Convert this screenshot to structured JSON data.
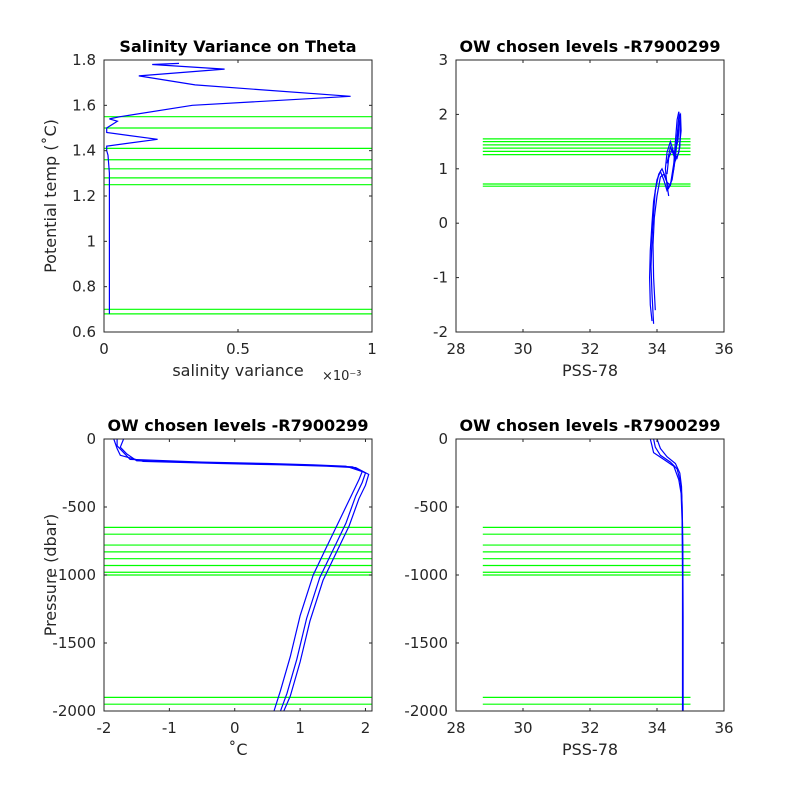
{
  "colors": {
    "profile": "#0000ff",
    "level": "#00ff00",
    "axis": "#262626",
    "background": "#ffffff"
  },
  "chart_data": [
    {
      "type": "line",
      "title": "Salinity Variance on Theta",
      "xlabel": "salinity variance",
      "xlabel_exponent": "×10⁻³",
      "ylabel": "Potential temp (˚C)",
      "xlim": [
        0,
        0.001
      ],
      "ylim": [
        0.6,
        1.8
      ],
      "xtick_values": [
        0,
        0.0005,
        0.001
      ],
      "xtick_labels": [
        "0",
        "0.5",
        "1"
      ],
      "ytick_values": [
        0.6,
        0.8,
        1,
        1.2,
        1.4,
        1.6,
        1.8
      ],
      "ytick_labels": [
        "0.6",
        "0.8",
        "1",
        "1.2",
        "1.4",
        "1.6",
        "1.8"
      ],
      "series": [
        {
          "color": "#0000ff",
          "x": [
            2e-05,
            2e-05,
            2e-05,
            2e-05,
            2e-05,
            1.5e-05,
            1e-05,
            1e-05,
            0.0002,
            1e-05,
            1e-05,
            5e-05,
            2e-05,
            6e-05,
            0.00033,
            0.00092,
            0.00034,
            0.00013,
            0.00045,
            0.00018,
            0.00028
          ],
          "y": [
            0.68,
            0.8,
            1.0,
            1.2,
            1.3,
            1.38,
            1.4,
            1.42,
            1.45,
            1.48,
            1.5,
            1.53,
            1.54,
            1.55,
            1.6,
            1.64,
            1.69,
            1.73,
            1.76,
            1.78,
            1.785
          ]
        }
      ],
      "level_lines": {
        "color": "#00ff00",
        "x_range": [
          0,
          0.001
        ],
        "y_values": [
          0.68,
          0.7,
          1.25,
          1.28,
          1.32,
          1.36,
          1.41,
          1.5,
          1.55
        ]
      }
    },
    {
      "type": "line",
      "title": "OW chosen levels -R7900299",
      "xlabel": "PSS-78",
      "ylabel": "",
      "xlim": [
        28,
        36
      ],
      "ylim": [
        -2,
        3
      ],
      "xtick_values": [
        28,
        30,
        32,
        34,
        36
      ],
      "xtick_labels": [
        "28",
        "30",
        "32",
        "34",
        "36"
      ],
      "ytick_values": [
        -2,
        -1,
        0,
        1,
        2,
        3
      ],
      "ytick_labels": [
        "-2",
        "-1",
        "0",
        "1",
        "2",
        "3"
      ],
      "series": [
        {
          "color": "#0000ff",
          "x": [
            33.85,
            33.8,
            33.78,
            33.8,
            33.85,
            33.9,
            34.0,
            34.1,
            34.2,
            34.3,
            34.4,
            34.5,
            34.55,
            34.6,
            34.65,
            34.7,
            34.68,
            34.6,
            34.5,
            34.4,
            34.3,
            34.25,
            34.3,
            34.35
          ],
          "y": [
            -1.8,
            -1.5,
            -1.0,
            -0.5,
            0,
            0.4,
            0.8,
            0.95,
            0.8,
            0.6,
            0.7,
            1.1,
            1.5,
            1.9,
            2.05,
            1.8,
            1.4,
            1.2,
            1.3,
            1.5,
            1.3,
            1.0,
            0.7,
            0.5
          ]
        },
        {
          "color": "#0000ff",
          "x": [
            33.9,
            33.85,
            33.82,
            33.85,
            33.9,
            33.95,
            34.05,
            34.15,
            34.25,
            34.35,
            34.45,
            34.55,
            34.6,
            34.65,
            34.7,
            34.72,
            34.65,
            34.55,
            34.45,
            34.35,
            34.3
          ],
          "y": [
            -1.85,
            -1.3,
            -0.8,
            -0.3,
            0.2,
            0.6,
            0.9,
            1.0,
            0.85,
            0.65,
            0.8,
            1.2,
            1.6,
            1.95,
            2.0,
            1.7,
            1.3,
            1.15,
            1.35,
            1.2,
            0.9
          ]
        },
        {
          "color": "#0000ff",
          "x": [
            33.95,
            33.9,
            33.88,
            33.92,
            34.0,
            34.1,
            34.2,
            34.3,
            34.4,
            34.5,
            34.6,
            34.68,
            34.62,
            34.5,
            34.4,
            34.3
          ],
          "y": [
            -1.6,
            -1.0,
            -0.4,
            0.1,
            0.5,
            0.85,
            0.9,
            0.75,
            0.7,
            1.0,
            1.5,
            1.9,
            1.5,
            1.25,
            1.4,
            1.1
          ]
        }
      ],
      "level_lines": {
        "color": "#00ff00",
        "x_range": [
          28.8,
          35.0
        ],
        "y_values": [
          0.68,
          0.72,
          1.26,
          1.32,
          1.38,
          1.44,
          1.5,
          1.55
        ]
      }
    },
    {
      "type": "line",
      "title": "OW chosen levels -R7900299",
      "xlabel": "˚C",
      "ylabel": "Pressure (dbar)",
      "xlim": [
        -2,
        2.1
      ],
      "ylim": [
        -2000,
        0
      ],
      "xtick_values": [
        -2,
        -1,
        0,
        1,
        2
      ],
      "xtick_labels": [
        "-2",
        "-1",
        "0",
        "1",
        "2"
      ],
      "ytick_values": [
        -2000,
        -1500,
        -1000,
        -500,
        0
      ],
      "ytick_labels": [
        "-2000",
        "-1500",
        "-1000",
        "-500",
        "0"
      ],
      "series": [
        {
          "color": "#0000ff",
          "x": [
            -1.8,
            -1.8,
            -1.7,
            -1.6,
            -0.5,
            0.5,
            1.2,
            1.7,
            1.95,
            1.9,
            1.8,
            1.6,
            1.4,
            1.2,
            1.0,
            0.85,
            0.7,
            0.6
          ],
          "y": [
            0,
            -50,
            -100,
            -150,
            -170,
            -180,
            -190,
            -200,
            -240,
            -300,
            -400,
            -600,
            -800,
            -1000,
            -1300,
            -1600,
            -1850,
            -2000
          ]
        },
        {
          "color": "#0000ff",
          "x": [
            -1.7,
            -1.75,
            -1.65,
            -1.5,
            -0.3,
            0.6,
            1.3,
            1.8,
            2.0,
            1.95,
            1.85,
            1.7,
            1.5,
            1.3,
            1.1,
            0.95,
            0.8,
            0.7
          ],
          "y": [
            0,
            -60,
            -110,
            -160,
            -175,
            -185,
            -195,
            -205,
            -250,
            -320,
            -420,
            -620,
            -820,
            -1020,
            -1320,
            -1620,
            -1870,
            -2000
          ]
        },
        {
          "color": "#0000ff",
          "x": [
            -1.85,
            -1.8,
            -1.75,
            -1.4,
            -0.2,
            0.7,
            1.4,
            1.85,
            2.05,
            2.0,
            1.9,
            1.75,
            1.55,
            1.35,
            1.15,
            1.0,
            0.85,
            0.75
          ],
          "y": [
            0,
            -70,
            -120,
            -165,
            -180,
            -190,
            -200,
            -210,
            -260,
            -340,
            -440,
            -640,
            -840,
            -1040,
            -1340,
            -1640,
            -1890,
            -2000
          ]
        }
      ],
      "level_lines": {
        "color": "#00ff00",
        "x_range": [
          -2,
          2.1
        ],
        "y_values": [
          -650,
          -700,
          -780,
          -830,
          -880,
          -930,
          -980,
          -1000,
          -1900,
          -1950
        ]
      }
    },
    {
      "type": "line",
      "title": "OW chosen levels -R7900299",
      "xlabel": "PSS-78",
      "ylabel": "",
      "xlim": [
        28,
        36
      ],
      "ylim": [
        -2000,
        0
      ],
      "xtick_values": [
        28,
        30,
        32,
        34,
        36
      ],
      "xtick_labels": [
        "28",
        "30",
        "32",
        "34",
        "36"
      ],
      "ytick_values": [
        -2000,
        -1500,
        -1000,
        -500,
        0
      ],
      "ytick_labels": [
        "-2000",
        "-1500",
        "-1000",
        "-500",
        "0"
      ],
      "series": [
        {
          "color": "#0000ff",
          "x": [
            33.8,
            33.85,
            33.9,
            34.2,
            34.5,
            34.65,
            34.72,
            34.75,
            34.76,
            34.76,
            34.76
          ],
          "y": [
            0,
            -50,
            -100,
            -150,
            -200,
            -300,
            -400,
            -600,
            -1000,
            -1500,
            -2000
          ]
        },
        {
          "color": "#0000ff",
          "x": [
            33.9,
            33.95,
            34.1,
            34.4,
            34.6,
            34.7,
            34.74,
            34.76,
            34.77,
            34.77,
            34.77
          ],
          "y": [
            0,
            -60,
            -120,
            -170,
            -220,
            -320,
            -420,
            -620,
            -1020,
            -1520,
            -2000
          ]
        },
        {
          "color": "#0000ff",
          "x": [
            34.0,
            34.1,
            34.3,
            34.55,
            34.68,
            34.73,
            34.75,
            34.77,
            34.78,
            34.78
          ],
          "y": [
            0,
            -70,
            -130,
            -180,
            -250,
            -350,
            -500,
            -800,
            -1300,
            -2000
          ]
        }
      ],
      "level_lines": {
        "color": "#00ff00",
        "x_range": [
          28.8,
          35.0
        ],
        "y_values": [
          -650,
          -700,
          -780,
          -830,
          -880,
          -930,
          -980,
          -1000,
          -1900,
          -1950
        ]
      }
    }
  ]
}
